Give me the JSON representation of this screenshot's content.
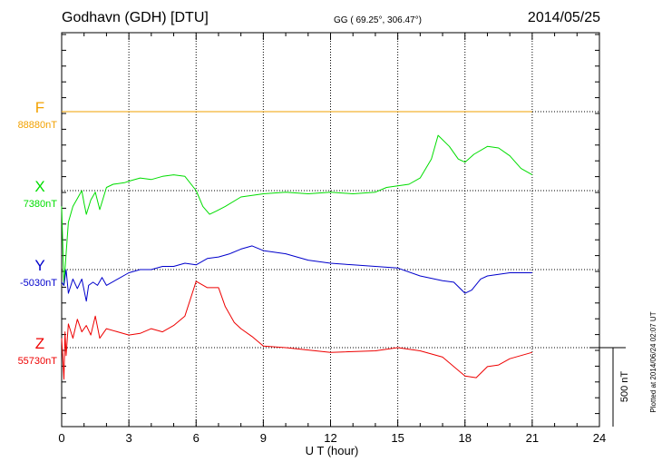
{
  "header": {
    "station": "Godhavn (GDH)  [DTU]",
    "coords": "GG ( 69.25°, 306.47°)",
    "date": "2014/05/25"
  },
  "side_note": "Plotted at 2014/06/24 02:07 UT",
  "scale_bar": {
    "label": "500 nT",
    "value": 500
  },
  "colors": {
    "F": "#f2a100",
    "X": "#00dd00",
    "Y": "#0000cc",
    "Z": "#ee0000"
  },
  "chart_data": {
    "type": "line",
    "title": "Godhavn (GDH)  [DTU]",
    "xlabel": "U T (hour)",
    "xlim": [
      0,
      24
    ],
    "xticks": [
      "0",
      "3",
      "6",
      "9",
      "12",
      "15",
      "18",
      "21",
      "24"
    ],
    "grid": true,
    "units": "nT",
    "series": [
      {
        "name": "F",
        "baseline_label": "88880nT",
        "baseline": 88880,
        "x": [
          0,
          21
        ],
        "values": [
          0,
          0
        ]
      },
      {
        "name": "X",
        "baseline_label": "7380nT",
        "baseline": 7380,
        "x": [
          0,
          0.1,
          0.2,
          0.3,
          0.5,
          0.7,
          0.9,
          1.0,
          1.1,
          1.3,
          1.5,
          1.7,
          2.0,
          2.3,
          2.8,
          3.0,
          3.5,
          4.0,
          4.5,
          5.0,
          5.5,
          6.0,
          6.3,
          6.6,
          6.9,
          7.3,
          8.0,
          9.0,
          10.0,
          11.0,
          12.0,
          13.0,
          14.0,
          14.5,
          15.0,
          15.5,
          16.0,
          16.5,
          16.8,
          17.3,
          17.7,
          18.0,
          18.4,
          19.0,
          19.5,
          20.0,
          20.5,
          21.0
        ],
        "values": [
          -100,
          -600,
          -400,
          -200,
          -100,
          -50,
          0,
          -80,
          -150,
          -60,
          -10,
          -120,
          20,
          40,
          50,
          60,
          80,
          70,
          90,
          100,
          90,
          0,
          -100,
          -150,
          -130,
          -100,
          -40,
          -20,
          -10,
          -20,
          -10,
          -20,
          -10,
          20,
          30,
          40,
          80,
          200,
          350,
          280,
          200,
          180,
          230,
          280,
          270,
          220,
          140,
          100
        ]
      },
      {
        "name": "Y",
        "baseline_label": "-5030nT",
        "baseline": -5030,
        "x": [
          0,
          0.1,
          0.2,
          0.3,
          0.5,
          0.7,
          0.9,
          1.1,
          1.2,
          1.4,
          1.6,
          1.8,
          2.0,
          2.5,
          3.0,
          3.5,
          4.0,
          4.5,
          5.0,
          5.5,
          6.0,
          6.5,
          7.0,
          7.5,
          8.0,
          8.5,
          9.0,
          10.0,
          11.0,
          12.0,
          13.0,
          14.0,
          15.0,
          16.0,
          17.0,
          17.5,
          18.0,
          18.3,
          18.7,
          19.0,
          19.5,
          20.0,
          21.0
        ],
        "values": [
          -80,
          -100,
          0,
          -150,
          -60,
          -120,
          -60,
          -200,
          -100,
          -80,
          -100,
          -50,
          -100,
          -60,
          -20,
          0,
          0,
          20,
          20,
          40,
          30,
          70,
          80,
          100,
          130,
          150,
          120,
          100,
          60,
          40,
          30,
          20,
          10,
          -40,
          -70,
          -80,
          -150,
          -130,
          -60,
          -40,
          -30,
          -20,
          -20
        ]
      },
      {
        "name": "Z",
        "baseline_label": "55730nT",
        "baseline": 55730,
        "x": [
          0,
          0.1,
          0.15,
          0.2,
          0.3,
          0.5,
          0.7,
          0.9,
          1.1,
          1.3,
          1.5,
          1.7,
          2.0,
          2.5,
          3.0,
          3.5,
          4.0,
          4.5,
          5.0,
          5.5,
          6.0,
          6.5,
          7.0,
          7.3,
          7.7,
          8.0,
          8.5,
          9.0,
          10.0,
          12.0,
          14.0,
          15.0,
          16.0,
          17.0,
          18.0,
          18.5,
          19.0,
          19.5,
          20.0,
          21.0
        ],
        "values": [
          60,
          -200,
          100,
          -50,
          150,
          60,
          180,
          100,
          140,
          80,
          200,
          60,
          120,
          100,
          80,
          90,
          120,
          100,
          140,
          200,
          420,
          380,
          380,
          260,
          160,
          120,
          70,
          10,
          0,
          -30,
          -20,
          0,
          -20,
          -60,
          -180,
          -190,
          -120,
          -110,
          -70,
          -30
        ]
      }
    ]
  }
}
